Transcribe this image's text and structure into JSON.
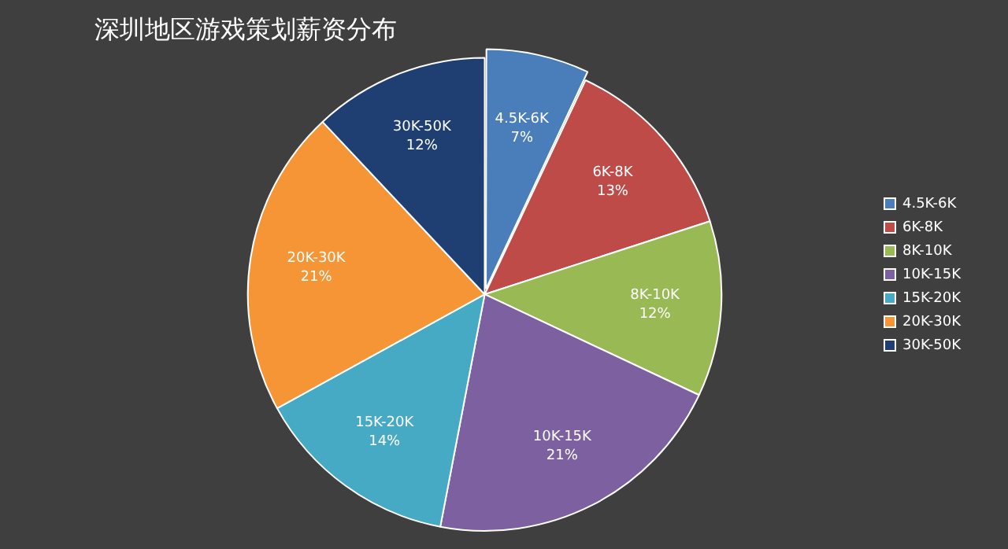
{
  "chart_data": {
    "type": "pie",
    "title": "深圳地区游戏策划薪资分布",
    "categories": [
      "4.5K-6K",
      "6K-8K",
      "8K-10K",
      "10K-15K",
      "15K-20K",
      "20K-30K",
      "30K-50K"
    ],
    "values": [
      7,
      13,
      12,
      21,
      14,
      21,
      12
    ],
    "colors": [
      "#4a7ebb",
      "#be4b48",
      "#98b954",
      "#7d60a0",
      "#46aac5",
      "#f59535",
      "#1f3f73"
    ],
    "value_labels": [
      "7%",
      "13%",
      "12%",
      "21%",
      "14%",
      "21%",
      "12%"
    ],
    "legend": "right"
  }
}
